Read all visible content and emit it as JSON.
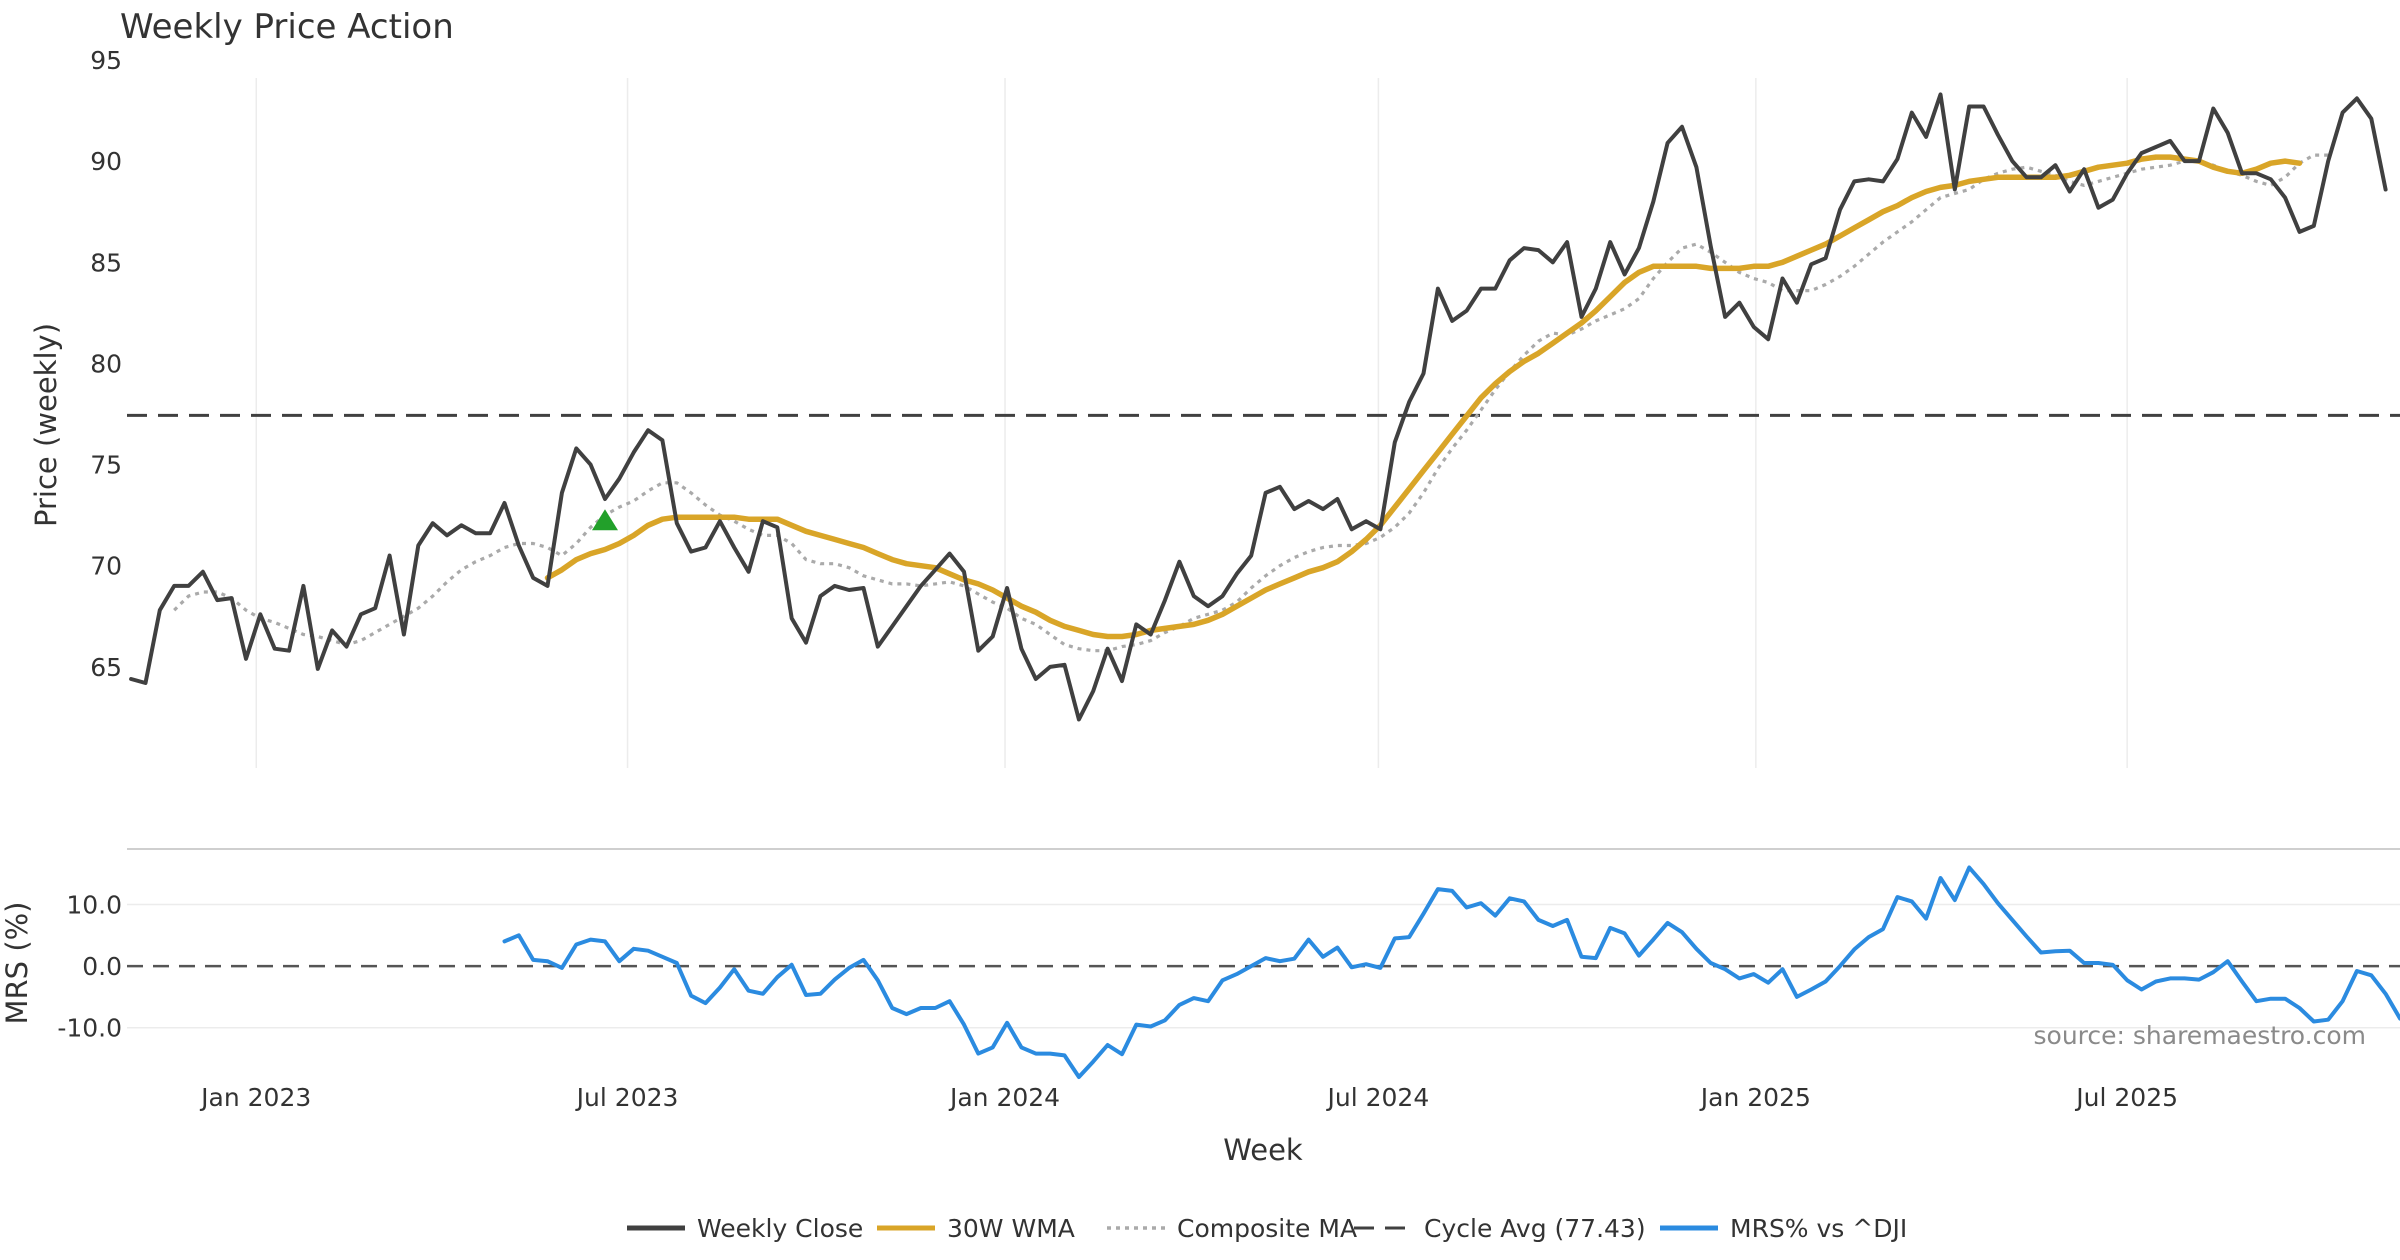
{
  "chart_data": {
    "type": "line",
    "title": "Weekly Price Action",
    "xlabel": "Week",
    "ylabel": "Price (weekly)",
    "mrs_ylabel": "MRS (%)",
    "source": "source: sharemaestro.com",
    "x_start": "2022-11-01",
    "x_step_days": 7,
    "x_ticks": [
      "Jan 2023",
      "Jul 2023",
      "Jan 2024",
      "Jul 2024",
      "Jan 2025",
      "Jul 2025"
    ],
    "x_tick_dates": [
      "2023-01-01",
      "2023-07-01",
      "2024-01-01",
      "2024-07-01",
      "2025-01-01",
      "2025-07-01"
    ],
    "x_range": [
      "2022-10-30",
      "2025-11-11"
    ],
    "price_ylim": [
      60.0,
      95.0
    ],
    "price_yticks": [
      "65",
      "70",
      "75",
      "80",
      "85",
      "90",
      "95"
    ],
    "price_ytick_values": [
      65,
      70,
      75,
      80,
      85,
      90,
      95
    ],
    "mrs_ylim": [
      -18.0,
      19.0
    ],
    "mrs_yticks": [
      "10.0",
      "0.0",
      "-10.0"
    ],
    "mrs_ytick_values": [
      10,
      0,
      -10
    ],
    "grid": true,
    "legend_position": "bottom-center",
    "cycle_avg": 77.43,
    "signal_marker": {
      "x_index": 33,
      "y": 72.3,
      "color": "#22a02a",
      "shape": "triangle-up-icon"
    },
    "series": [
      {
        "name": "Weekly Close",
        "color": "#404040",
        "style": "solid",
        "start_index": 0,
        "values": [
          64.4,
          64.2,
          67.8,
          69.0,
          69.0,
          69.7,
          68.3,
          68.4,
          65.4,
          67.6,
          65.9,
          65.8,
          69.0,
          64.9,
          66.8,
          66.0,
          67.6,
          67.9,
          70.5,
          66.6,
          71.0,
          72.1,
          71.5,
          72.0,
          71.6,
          71.6,
          73.1,
          71.0,
          69.4,
          69.0,
          73.6,
          75.8,
          75.0,
          73.3,
          74.3,
          75.6,
          76.7,
          76.2,
          72.1,
          70.7,
          70.9,
          72.2,
          70.9,
          69.7,
          72.2,
          71.9,
          67.4,
          66.2,
          68.5,
          69.0,
          68.8,
          68.9,
          66.0,
          67.0,
          68.0,
          69.0,
          69.8,
          70.6,
          69.7,
          65.8,
          66.5,
          68.9,
          65.9,
          64.4,
          65.0,
          65.1,
          62.4,
          63.8,
          65.9,
          64.3,
          67.1,
          66.6,
          68.3,
          70.2,
          68.5,
          68.0,
          68.5,
          69.6,
          70.5,
          73.6,
          73.9,
          72.8,
          73.2,
          72.8,
          73.3,
          71.8,
          72.2,
          71.8,
          76.1,
          78.1,
          79.5,
          83.7,
          82.1,
          82.6,
          83.7,
          83.7,
          85.1,
          85.7,
          85.6,
          85.0,
          86.0,
          82.3,
          83.7,
          86.0,
          84.4,
          85.7,
          88.0,
          90.9,
          91.7,
          89.7,
          85.8,
          82.3,
          83.0,
          81.8,
          81.2,
          84.2,
          83.0,
          84.9,
          85.2,
          87.6,
          89.0,
          89.1,
          89.0,
          90.1,
          92.4,
          91.2,
          93.3,
          88.6,
          92.7,
          92.7,
          91.3,
          90.0,
          89.2,
          89.2,
          89.8,
          88.5,
          89.6,
          87.7,
          88.1,
          89.4,
          90.4,
          90.7,
          91.0,
          90.0,
          90.0,
          92.6,
          91.4,
          89.4,
          89.4,
          89.1,
          88.2,
          86.5,
          86.8,
          90.0,
          92.4,
          93.1,
          92.1,
          88.6
        ]
      },
      {
        "name": "30W WMA",
        "color": "#d9a528",
        "style": "solid",
        "start_index": 29,
        "values": [
          69.4,
          69.8,
          70.3,
          70.6,
          70.8,
          71.1,
          71.5,
          72.0,
          72.3,
          72.4,
          72.4,
          72.4,
          72.4,
          72.4,
          72.3,
          72.3,
          72.3,
          72.0,
          71.7,
          71.5,
          71.3,
          71.1,
          70.9,
          70.6,
          70.3,
          70.1,
          70.0,
          69.9,
          69.6,
          69.3,
          69.1,
          68.8,
          68.4,
          68.0,
          67.7,
          67.3,
          67.0,
          66.8,
          66.6,
          66.5,
          66.5,
          66.6,
          66.8,
          66.9,
          67.0,
          67.1,
          67.3,
          67.6,
          68.0,
          68.4,
          68.8,
          69.1,
          69.4,
          69.7,
          69.9,
          70.2,
          70.7,
          71.3,
          72.0,
          72.9,
          73.8,
          74.7,
          75.6,
          76.5,
          77.4,
          78.3,
          79.0,
          79.6,
          80.1,
          80.5,
          81.0,
          81.5,
          82.0,
          82.6,
          83.3,
          84.0,
          84.5,
          84.8,
          84.8,
          84.8,
          84.8,
          84.7,
          84.7,
          84.7,
          84.8,
          84.8,
          85.0,
          85.3,
          85.6,
          85.9,
          86.3,
          86.7,
          87.1,
          87.5,
          87.8,
          88.2,
          88.5,
          88.7,
          88.8,
          89.0,
          89.1,
          89.2,
          89.2,
          89.2,
          89.2,
          89.2,
          89.3,
          89.5,
          89.7,
          89.8,
          89.9,
          90.1,
          90.2,
          90.2,
          90.1,
          90.0,
          89.7,
          89.5,
          89.4,
          89.6,
          89.9,
          90.0,
          89.9
        ]
      },
      {
        "name": "Composite MA",
        "color": "#aaaaaa",
        "style": "dotted",
        "start_index": 3,
        "values": [
          67.8,
          68.5,
          68.7,
          68.7,
          68.4,
          67.8,
          67.4,
          67.2,
          66.9,
          66.6,
          66.5,
          66.3,
          66.1,
          66.3,
          66.7,
          67.1,
          67.5,
          67.9,
          68.5,
          69.2,
          69.8,
          70.2,
          70.5,
          70.9,
          71.1,
          71.1,
          70.9,
          70.5,
          71.1,
          71.9,
          72.5,
          72.9,
          73.2,
          73.7,
          74.1,
          74.1,
          73.6,
          73.0,
          72.5,
          72.2,
          71.8,
          71.5,
          71.5,
          71.1,
          70.3,
          70.1,
          70.1,
          69.9,
          69.5,
          69.3,
          69.1,
          69.1,
          69.0,
          69.1,
          69.2,
          69.0,
          68.6,
          68.2,
          67.9,
          67.4,
          67.1,
          66.6,
          66.1,
          65.9,
          65.8,
          65.8,
          66.0,
          66.1,
          66.3,
          66.7,
          67.0,
          67.4,
          67.6,
          67.8,
          68.2,
          68.9,
          69.5,
          70.0,
          70.4,
          70.7,
          70.9,
          71.0,
          71.0,
          71.1,
          71.4,
          71.9,
          72.6,
          73.6,
          74.8,
          75.8,
          76.7,
          77.7,
          78.7,
          79.6,
          80.4,
          81.1,
          81.5,
          81.4,
          81.7,
          82.1,
          82.4,
          82.7,
          83.2,
          84.2,
          85.0,
          85.7,
          85.9,
          85.5,
          85.0,
          84.5,
          84.2,
          84.0,
          83.6,
          83.6,
          83.6,
          83.9,
          84.3,
          84.8,
          85.4,
          86.0,
          86.5,
          87.0,
          87.6,
          88.2,
          88.4,
          88.6,
          89.1,
          89.4,
          89.6,
          89.7,
          89.5,
          89.3,
          89.0,
          88.8,
          89.0,
          89.2,
          89.4,
          89.6,
          89.7,
          89.8,
          90.0,
          90.0,
          89.8,
          89.5,
          89.3,
          89.0,
          88.8,
          89.2,
          89.9,
          90.3,
          90.3
        ]
      },
      {
        "name": "MRS% vs ^DJI",
        "color": "#2b8be0",
        "style": "solid",
        "start_index": 26,
        "values": [
          4.0,
          5.0,
          1.0,
          0.8,
          -0.3,
          3.5,
          4.3,
          4.0,
          0.8,
          2.8,
          2.5,
          1.5,
          0.5,
          -4.8,
          -6.0,
          -3.5,
          -0.5,
          -4.0,
          -4.5,
          -1.8,
          0.2,
          -4.7,
          -4.5,
          -2.2,
          -0.3,
          1.0,
          -2.3,
          -6.8,
          -7.8,
          -6.8,
          -6.8,
          -5.7,
          -9.5,
          -14.2,
          -13.2,
          -9.2,
          -13.2,
          -14.2,
          -14.2,
          -14.5,
          -18.0,
          -15.5,
          -12.8,
          -14.3,
          -9.5,
          -9.8,
          -8.8,
          -6.3,
          -5.2,
          -5.7,
          -2.3,
          -1.3,
          0.0,
          1.3,
          0.8,
          1.2,
          4.3,
          1.5,
          3.0,
          -0.2,
          0.3,
          -0.3,
          4.5,
          4.7,
          8.5,
          12.5,
          12.2,
          9.5,
          10.2,
          8.2,
          11.0,
          10.5,
          7.5,
          6.5,
          7.5,
          1.5,
          1.3,
          6.2,
          5.3,
          1.7,
          4.3,
          7.0,
          5.5,
          2.8,
          0.5,
          -0.5,
          -2.0,
          -1.3,
          -2.7,
          -0.5,
          -5.0,
          -3.8,
          -2.5,
          0.0,
          2.7,
          4.7,
          6.0,
          11.2,
          10.5,
          7.7,
          14.3,
          10.7,
          16.0,
          13.3,
          10.2,
          7.5,
          4.8,
          2.2,
          2.4,
          2.5,
          0.5,
          0.5,
          0.2,
          -2.3,
          -3.8,
          -2.5,
          -2.0,
          -2.0,
          -2.2,
          -1.0,
          0.8,
          -2.5,
          -5.7,
          -5.3,
          -5.3,
          -6.8,
          -9.0,
          -8.7,
          -5.7,
          -0.8,
          -1.5,
          -4.5,
          -8.5
        ]
      }
    ]
  },
  "legend": {
    "items": [
      {
        "label": "Weekly Close",
        "color": "#404040",
        "style": "solid"
      },
      {
        "label": "30W WMA",
        "color": "#d9a528",
        "style": "solid"
      },
      {
        "label": "Composite MA",
        "color": "#aaaaaa",
        "style": "dotted"
      },
      {
        "label": "Cycle Avg (77.43)",
        "color": "#404040",
        "style": "dashed"
      },
      {
        "label": "MRS% vs ^DJI",
        "color": "#2b8be0",
        "style": "solid"
      }
    ]
  }
}
